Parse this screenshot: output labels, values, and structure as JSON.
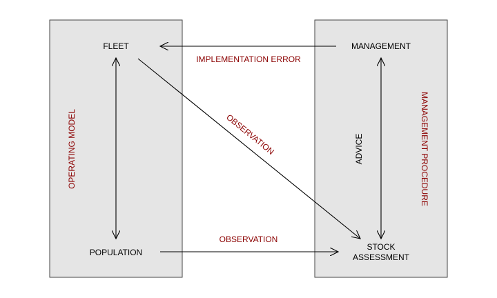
{
  "colors": {
    "box_fill": "#e5e5e5",
    "box_stroke": "#444444",
    "arrow": "#000000",
    "accent_text": "#8b0000",
    "label_text": "#000000"
  },
  "nodes": {
    "fleet": "FLEET",
    "population": "POPULATION",
    "management": "MANAGEMENT",
    "stock_line1": "STOCK",
    "stock_line2": "ASSESSMENT"
  },
  "panels": {
    "left": "OPERATING MODEL",
    "right": "MANAGEMENT PROCEDURE"
  },
  "edges": {
    "implementation_error": "IMPLEMENTATION ERROR",
    "observation_diagonal": "OBSERVATION",
    "observation_bottom": "OBSERVATION",
    "advice": "ADVICE"
  }
}
